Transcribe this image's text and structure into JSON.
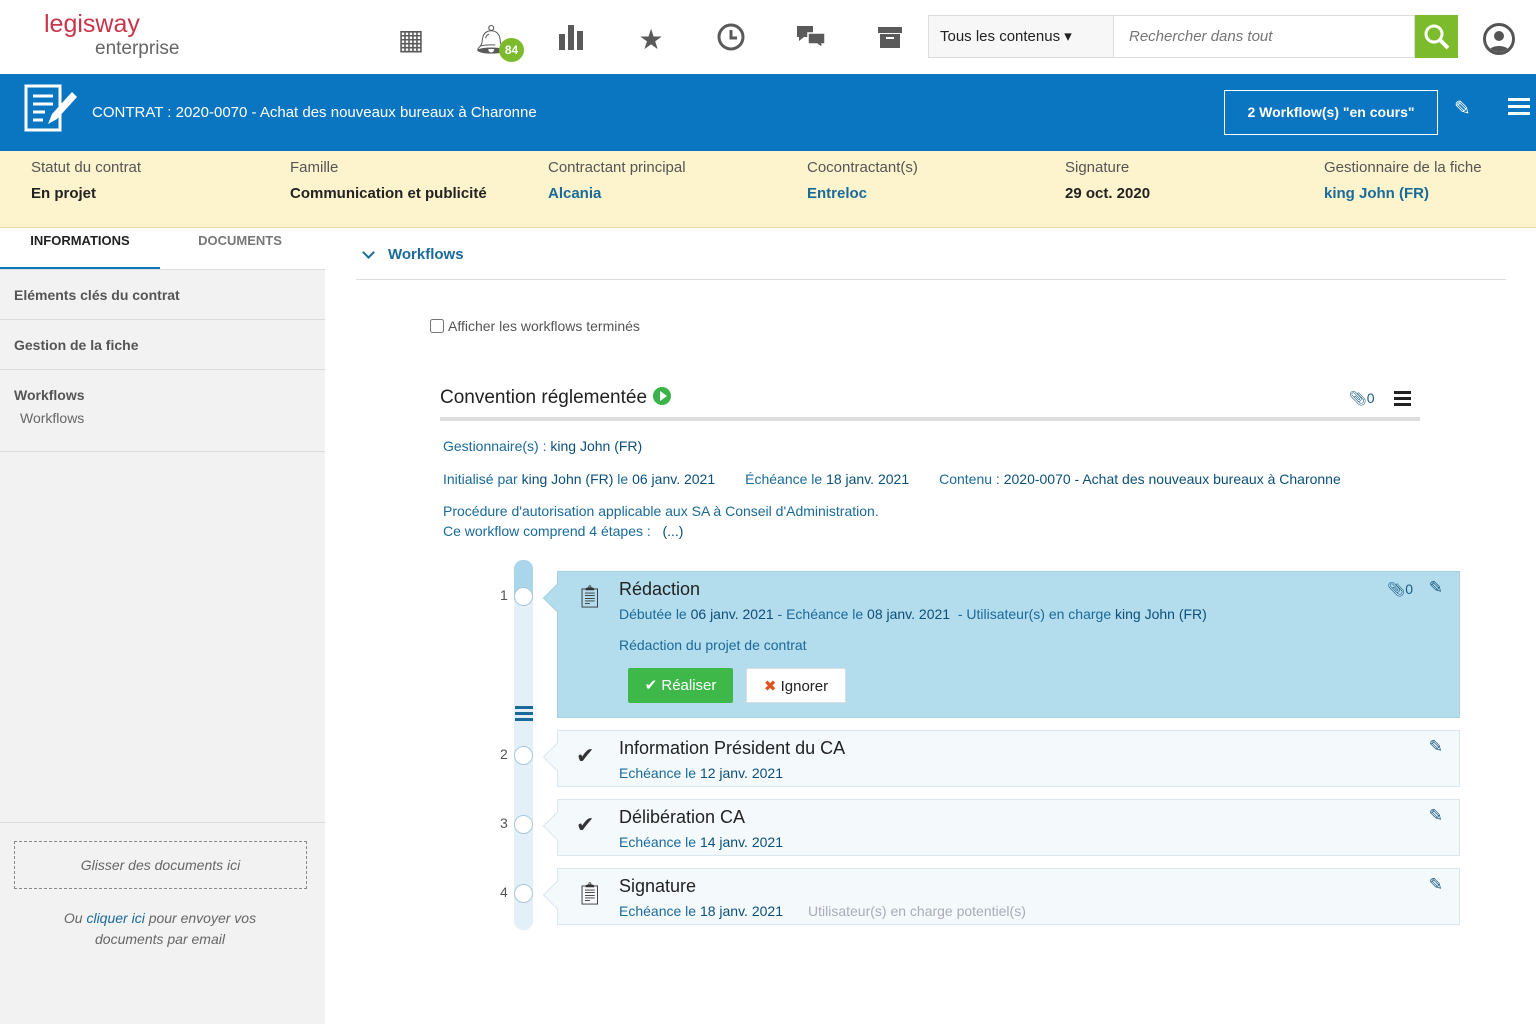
{
  "logo": {
    "line1": "legisway",
    "line2": "enterprise"
  },
  "topbar": {
    "notifications_count": "84",
    "scope_select": "Tous les contenus ▾",
    "search_placeholder": "Rechercher dans tout"
  },
  "header": {
    "title": "CONTRAT : 2020-0070 - Achat des nouveaux bureaux à Charonne",
    "workflows_button": "2 Workflow(s) \"en cours\""
  },
  "info": [
    {
      "label": "Statut du contrat",
      "value": "En projet"
    },
    {
      "label": "Famille",
      "value": "Communication et publicité"
    },
    {
      "label": "Contractant principal",
      "value": "Alcania"
    },
    {
      "label": "Cocontractant(s)",
      "value": "Entreloc"
    },
    {
      "label": "Signature",
      "value": "29 oct. 2020"
    },
    {
      "label": "Gestionnaire de la fiche",
      "value": "king John (FR)"
    }
  ],
  "sidebar": {
    "tabs": [
      "INFORMATIONS",
      "DOCUMENTS"
    ],
    "items": [
      "Eléments clés du contrat",
      "Gestion de la fiche",
      "Workflows"
    ],
    "subitem": "Workflows",
    "drop": "Glisser des documents ici",
    "mail_prefix": "Ou ",
    "mail_link": "cliquer ici",
    "mail_suffix": " pour envoyer vos documents par email"
  },
  "main": {
    "section": "Workflows",
    "show_finished": "Afficher les workflows terminés",
    "workflow": {
      "title": "Convention réglementée",
      "attachments": "0",
      "manager_label": "Gestionnaire(s) : ",
      "manager": "king John (FR)",
      "init_label": "Initialisé par ",
      "init_by": "king John (FR)",
      "init_le": " le ",
      "init_date": "06 janv. 2021",
      "due_label": "Échéance le ",
      "due_date": "18 janv. 2021",
      "content_label": "Contenu : ",
      "content": "2020-0070 - Achat des nouveaux bureaux à Charonne",
      "desc1": "Procédure d'autorisation applicable aux SA à Conseil d'Administration.",
      "desc2": "Ce workflow comprend 4 étapes :",
      "more": "(...)"
    },
    "steps": [
      {
        "num": "1",
        "title": "Rédaction",
        "started_label": "Débutée le ",
        "started": "06 janv. 2021",
        "due_label": " - Echéance le ",
        "due": "08 janv. 2021",
        "user_label": "  - Utilisateur(s) en charge ",
        "user": "king John (FR)",
        "desc": "Rédaction du projet de contrat",
        "attachments": "0",
        "do": "Réaliser",
        "ignore": "Ignorer"
      },
      {
        "num": "2",
        "title": "Information Président du CA",
        "due_label": "Echéance le ",
        "due": "12 janv. 2021"
      },
      {
        "num": "3",
        "title": "Délibération CA",
        "due_label": "Echéance le ",
        "due": "14 janv. 2021"
      },
      {
        "num": "4",
        "title": "Signature",
        "due_label": "Echéance le ",
        "due": "18 janv. 2021",
        "user_note": "Utilisateur(s) en charge potentiel(s)"
      }
    ]
  }
}
